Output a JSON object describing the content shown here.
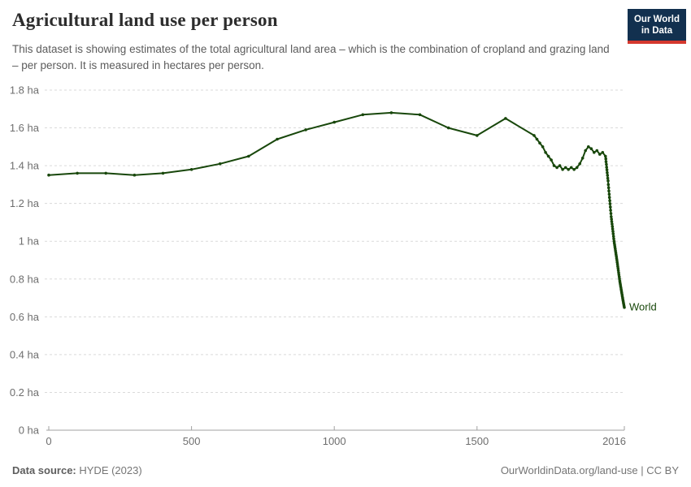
{
  "header": {
    "title": "Agricultural land use per person",
    "subtitle": "This dataset is showing estimates of the total agricultural land area – which is the combination of cropland and grazing land – per person. It is measured in hectares per person.",
    "logo": {
      "line1": "Our World",
      "line2": "in Data",
      "bg_color": "#12304f",
      "accent_color": "#d4382e"
    }
  },
  "footer": {
    "source_label": "Data source:",
    "source_value": "HYDE (2023)",
    "link_text": "OurWorldinData.org/land-use",
    "separator": " | ",
    "license": "CC BY"
  },
  "chart_data": {
    "type": "line",
    "title": "Agricultural land use per person",
    "unit": "hectares per person",
    "xlabel": "",
    "ylabel": "ha",
    "xlim": [
      0,
      2016
    ],
    "ylim": [
      0,
      1.8
    ],
    "grid": "horizontal-dashed",
    "legend_position": "end-of-line-label",
    "colors": {
      "line": "#18470b",
      "grid": "#dadada",
      "axis": "#a1a1a1",
      "tick_text": "#6e6e6e"
    },
    "x_ticks": [
      {
        "v": 0,
        "label": "0"
      },
      {
        "v": 500,
        "label": "500"
      },
      {
        "v": 1000,
        "label": "1000"
      },
      {
        "v": 1500,
        "label": "1500"
      },
      {
        "v": 2016,
        "label": "2016"
      }
    ],
    "y_ticks": [
      {
        "v": 0,
        "label": "0 ha"
      },
      {
        "v": 0.2,
        "label": "0.2 ha"
      },
      {
        "v": 0.4,
        "label": "0.4 ha"
      },
      {
        "v": 0.6,
        "label": "0.6 ha"
      },
      {
        "v": 0.8,
        "label": "0.8 ha"
      },
      {
        "v": 1,
        "label": "1 ha"
      },
      {
        "v": 1.2,
        "label": "1.2 ha"
      },
      {
        "v": 1.4,
        "label": "1.4 ha"
      },
      {
        "v": 1.6,
        "label": "1.6 ha"
      },
      {
        "v": 1.8,
        "label": "1.8 ha"
      }
    ],
    "series": [
      {
        "name": "World",
        "color": "#18470b",
        "points": [
          [
            0,
            1.35
          ],
          [
            100,
            1.36
          ],
          [
            200,
            1.36
          ],
          [
            300,
            1.35
          ],
          [
            400,
            1.36
          ],
          [
            500,
            1.38
          ],
          [
            600,
            1.41
          ],
          [
            700,
            1.45
          ],
          [
            800,
            1.54
          ],
          [
            900,
            1.59
          ],
          [
            1000,
            1.63
          ],
          [
            1100,
            1.67
          ],
          [
            1200,
            1.68
          ],
          [
            1300,
            1.67
          ],
          [
            1400,
            1.6
          ],
          [
            1500,
            1.56
          ],
          [
            1600,
            1.65
          ],
          [
            1700,
            1.56
          ],
          [
            1710,
            1.54
          ],
          [
            1720,
            1.52
          ],
          [
            1730,
            1.5
          ],
          [
            1740,
            1.47
          ],
          [
            1750,
            1.45
          ],
          [
            1760,
            1.43
          ],
          [
            1770,
            1.4
          ],
          [
            1780,
            1.39
          ],
          [
            1790,
            1.4
          ],
          [
            1800,
            1.38
          ],
          [
            1810,
            1.39
          ],
          [
            1820,
            1.38
          ],
          [
            1830,
            1.39
          ],
          [
            1840,
            1.38
          ],
          [
            1850,
            1.39
          ],
          [
            1860,
            1.41
          ],
          [
            1870,
            1.44
          ],
          [
            1880,
            1.48
          ],
          [
            1890,
            1.5
          ],
          [
            1900,
            1.49
          ],
          [
            1910,
            1.47
          ],
          [
            1920,
            1.48
          ],
          [
            1930,
            1.46
          ],
          [
            1940,
            1.47
          ],
          [
            1950,
            1.45
          ],
          [
            1951,
            1.436
          ],
          [
            1952,
            1.421
          ],
          [
            1953,
            1.407
          ],
          [
            1954,
            1.392
          ],
          [
            1955,
            1.378
          ],
          [
            1956,
            1.363
          ],
          [
            1957,
            1.349
          ],
          [
            1958,
            1.334
          ],
          [
            1959,
            1.32
          ],
          [
            1960,
            1.3
          ],
          [
            1961,
            1.283
          ],
          [
            1962,
            1.266
          ],
          [
            1963,
            1.249
          ],
          [
            1964,
            1.232
          ],
          [
            1965,
            1.215
          ],
          [
            1966,
            1.198
          ],
          [
            1967,
            1.181
          ],
          [
            1968,
            1.164
          ],
          [
            1969,
            1.147
          ],
          [
            1970,
            1.13
          ],
          [
            1971,
            1.117
          ],
          [
            1972,
            1.104
          ],
          [
            1973,
            1.091
          ],
          [
            1974,
            1.078
          ],
          [
            1975,
            1.065
          ],
          [
            1976,
            1.052
          ],
          [
            1977,
            1.039
          ],
          [
            1978,
            1.026
          ],
          [
            1979,
            1.013
          ],
          [
            1980,
            1.0
          ],
          [
            1981,
            0.99
          ],
          [
            1982,
            0.98
          ],
          [
            1983,
            0.97
          ],
          [
            1984,
            0.96
          ],
          [
            1985,
            0.95
          ],
          [
            1986,
            0.94
          ],
          [
            1987,
            0.93
          ],
          [
            1988,
            0.92
          ],
          [
            1989,
            0.91
          ],
          [
            1990,
            0.9
          ],
          [
            1991,
            0.889
          ],
          [
            1992,
            0.878
          ],
          [
            1993,
            0.867
          ],
          [
            1994,
            0.856
          ],
          [
            1995,
            0.845
          ],
          [
            1996,
            0.834
          ],
          [
            1997,
            0.823
          ],
          [
            1998,
            0.812
          ],
          [
            1999,
            0.801
          ],
          [
            2000,
            0.79
          ],
          [
            2001,
            0.781
          ],
          [
            2002,
            0.772
          ],
          [
            2003,
            0.763
          ],
          [
            2004,
            0.754
          ],
          [
            2005,
            0.745
          ],
          [
            2006,
            0.736
          ],
          [
            2007,
            0.727
          ],
          [
            2008,
            0.718
          ],
          [
            2009,
            0.709
          ],
          [
            2010,
            0.7
          ],
          [
            2011,
            0.691
          ],
          [
            2012,
            0.683
          ],
          [
            2013,
            0.674
          ],
          [
            2014,
            0.666
          ],
          [
            2015,
            0.658
          ],
          [
            2016,
            0.65
          ]
        ]
      }
    ]
  }
}
